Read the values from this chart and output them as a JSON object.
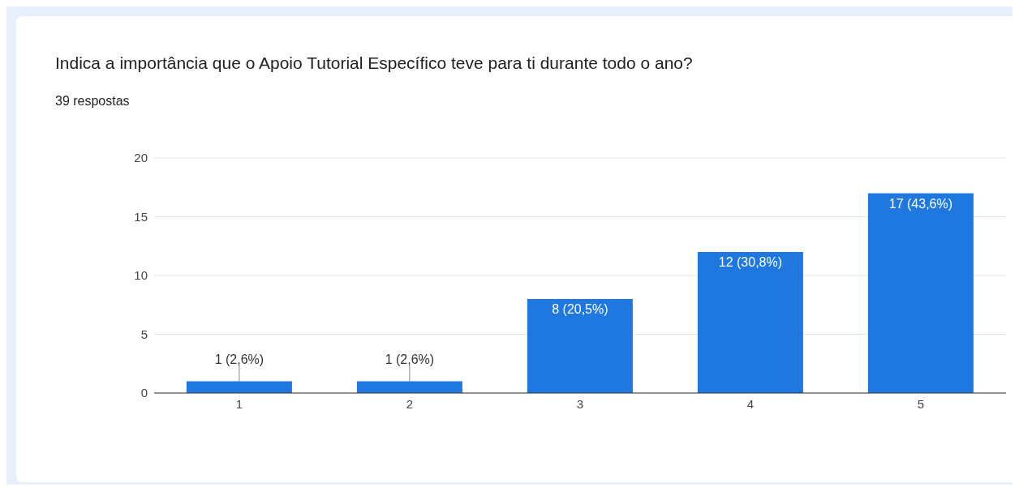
{
  "chart_data": {
    "type": "bar",
    "title": "Indica a importância que o Apoio Tutorial Específico teve para ti durante todo o ano?",
    "subtitle": "39 respostas",
    "categories": [
      "1",
      "2",
      "3",
      "4",
      "5"
    ],
    "values": [
      1,
      1,
      8,
      12,
      17
    ],
    "value_labels": [
      "1 (2,6%)",
      "1 (2,6%)",
      "8 (20,5%)",
      "12 (30,8%)",
      "17 (43,6%)"
    ],
    "color": "#1f77e0",
    "ylim": [
      0,
      20
    ],
    "yticks": [
      0,
      5,
      10,
      15,
      20
    ],
    "grid": "y",
    "legend": false
  }
}
